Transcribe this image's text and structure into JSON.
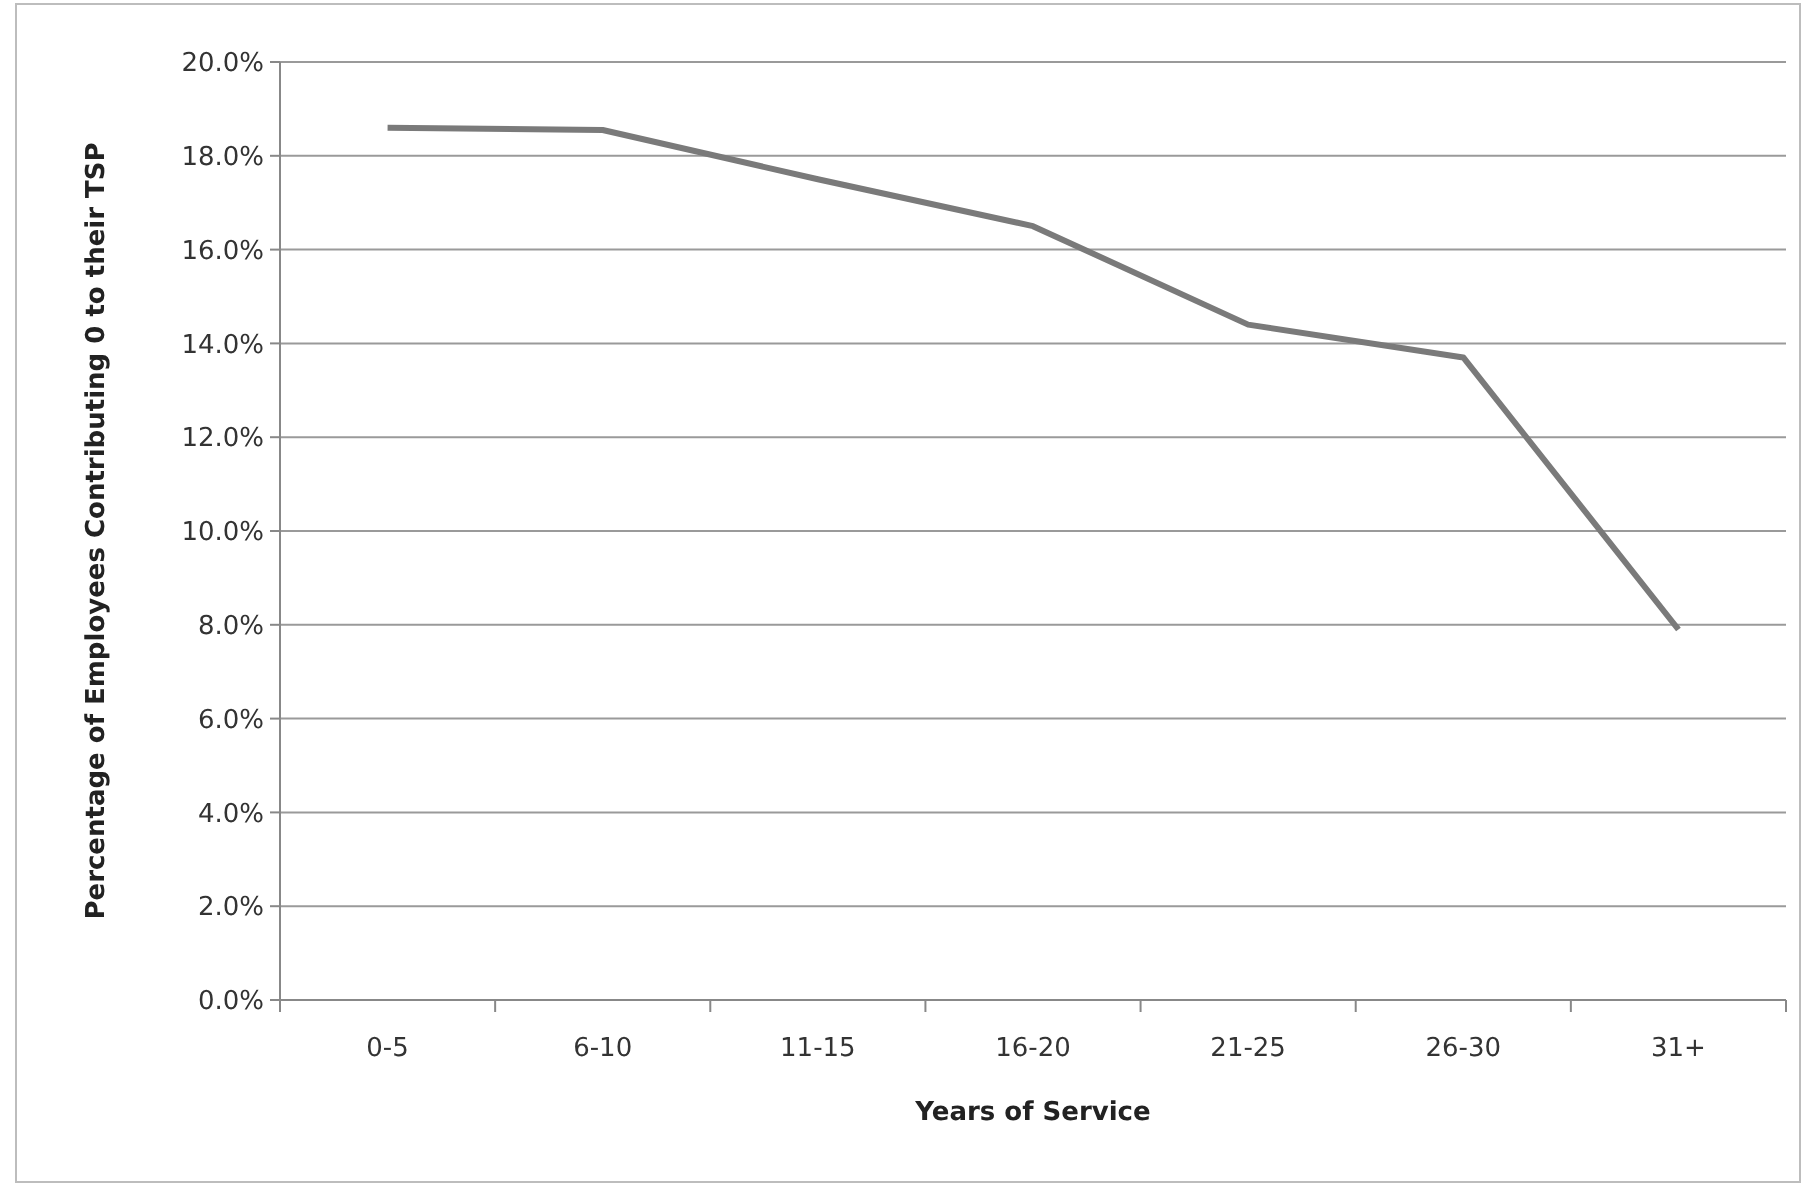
{
  "chart_data": {
    "type": "line",
    "xlabel": "Years of Service",
    "ylabel": "Percentage of Employees Contributing 0 to their TSP",
    "categories": [
      "0-5",
      "6-10",
      "11-15",
      "16-20",
      "21-25",
      "26-30",
      "31+"
    ],
    "series": [
      {
        "color": "#7a7a7a",
        "values": [
          18.6,
          18.55,
          17.5,
          16.5,
          14.4,
          13.7,
          7.9
        ]
      }
    ],
    "ylim": [
      0,
      20
    ],
    "yticks": [
      {
        "value": 0,
        "label": "0.0%"
      },
      {
        "value": 2,
        "label": "2.0%"
      },
      {
        "value": 4,
        "label": "4.0%"
      },
      {
        "value": 6,
        "label": "6.0%"
      },
      {
        "value": 8,
        "label": "8.0%"
      },
      {
        "value": 10,
        "label": "10.0%"
      },
      {
        "value": 12,
        "label": "12.0%"
      },
      {
        "value": 14,
        "label": "14.0%"
      },
      {
        "value": 16,
        "label": "16.0%"
      },
      {
        "value": 18,
        "label": "18.0%"
      },
      {
        "value": 20,
        "label": "20.0%"
      }
    ],
    "grid": "y",
    "marker": "none",
    "line_style": "solid"
  }
}
